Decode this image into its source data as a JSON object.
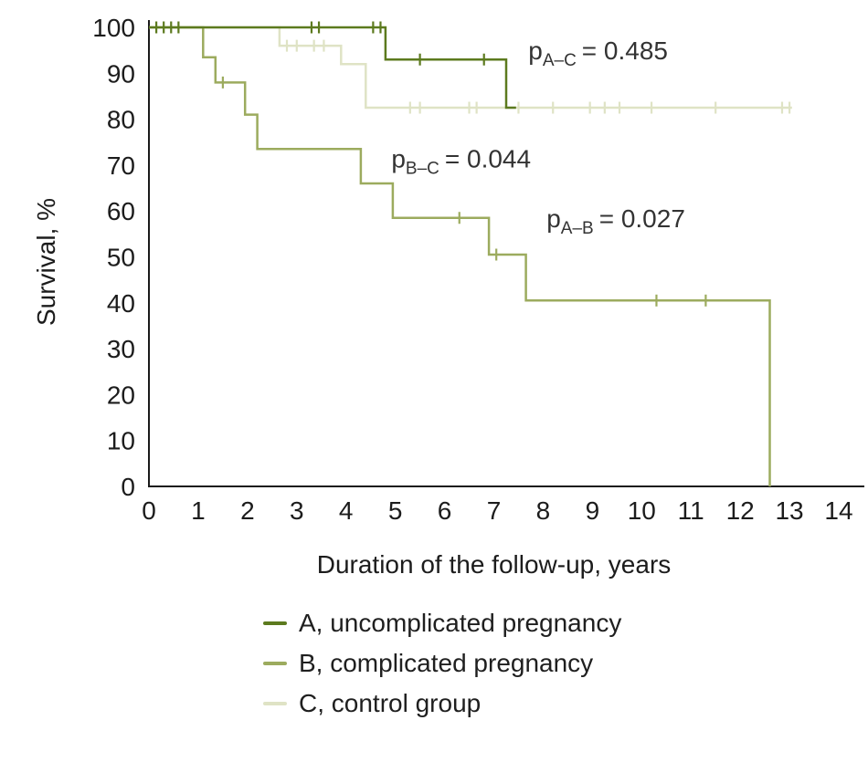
{
  "chart_data": {
    "type": "line",
    "subtype": "kaplan-meier-step",
    "title": "",
    "xlabel": "Duration of the follow-up, years",
    "ylabel": "Survival, %",
    "xlim": [
      0,
      14
    ],
    "ylim": [
      0,
      100
    ],
    "xticks": [
      0,
      1,
      2,
      3,
      4,
      5,
      6,
      7,
      8,
      9,
      10,
      11,
      12,
      13,
      14
    ],
    "yticks": [
      0,
      10,
      20,
      30,
      40,
      50,
      60,
      70,
      80,
      90,
      100
    ],
    "grid": false,
    "legend_position": "bottom",
    "series": [
      {
        "name": "A, uncomplicated pregnancy",
        "color": "#5c7a1e",
        "points": [
          [
            0,
            100
          ],
          [
            4.8,
            100
          ],
          [
            4.8,
            93
          ],
          [
            7.25,
            93
          ],
          [
            7.25,
            82.5
          ],
          [
            7.45,
            82.5
          ]
        ],
        "censors": [
          [
            0.15,
            100
          ],
          [
            0.3,
            100
          ],
          [
            0.45,
            100
          ],
          [
            0.6,
            100
          ],
          [
            3.3,
            100
          ],
          [
            3.45,
            100
          ],
          [
            4.55,
            100
          ],
          [
            4.7,
            100
          ],
          [
            5.5,
            93
          ],
          [
            6.8,
            93
          ]
        ]
      },
      {
        "name": "B, complicated pregnancy",
        "color": "#9cab5e",
        "points": [
          [
            0,
            100
          ],
          [
            1.1,
            100
          ],
          [
            1.1,
            93.5
          ],
          [
            1.35,
            93.5
          ],
          [
            1.35,
            88
          ],
          [
            1.95,
            88
          ],
          [
            1.95,
            81
          ],
          [
            2.2,
            81
          ],
          [
            2.2,
            73.5
          ],
          [
            4.3,
            73.5
          ],
          [
            4.3,
            66
          ],
          [
            4.95,
            66
          ],
          [
            4.95,
            58.5
          ],
          [
            6.9,
            58.5
          ],
          [
            6.9,
            50.5
          ],
          [
            7.65,
            50.5
          ],
          [
            7.65,
            40.5
          ],
          [
            12.6,
            40.5
          ],
          [
            12.6,
            0
          ]
        ],
        "censors": [
          [
            1.5,
            88
          ],
          [
            6.3,
            58.5
          ],
          [
            7.05,
            50.5
          ],
          [
            10.3,
            40.5
          ],
          [
            11.3,
            40.5
          ]
        ]
      },
      {
        "name": "C, control group",
        "color": "#dfe3c5",
        "points": [
          [
            0,
            100
          ],
          [
            2.65,
            100
          ],
          [
            2.65,
            96
          ],
          [
            3.9,
            96
          ],
          [
            3.9,
            92
          ],
          [
            4.4,
            92
          ],
          [
            4.4,
            82.5
          ],
          [
            13.05,
            82.5
          ]
        ],
        "censors": [
          [
            2.8,
            96
          ],
          [
            3.0,
            96
          ],
          [
            3.35,
            96
          ],
          [
            3.55,
            96
          ],
          [
            5.3,
            82.5
          ],
          [
            5.5,
            82.5
          ],
          [
            6.5,
            82.5
          ],
          [
            6.65,
            82.5
          ],
          [
            7.5,
            82.5
          ],
          [
            8.2,
            82.5
          ],
          [
            8.95,
            82.5
          ],
          [
            9.25,
            82.5
          ],
          [
            9.55,
            82.5
          ],
          [
            10.2,
            82.5
          ],
          [
            11.5,
            82.5
          ],
          [
            12.85,
            82.5
          ],
          [
            13.0,
            82.5
          ]
        ]
      }
    ],
    "annotations": [
      {
        "id": "p-ac",
        "main": "p",
        "sub": "A–C",
        "rest": "= 0.485",
        "x": 7.7,
        "y": 93
      },
      {
        "id": "p-bc",
        "main": "p",
        "sub": "B–C",
        "rest": "= 0.044",
        "x": 4.92,
        "y": 69.5
      },
      {
        "id": "p-ab",
        "main": "p",
        "sub": "A–B",
        "rest": "= 0.027",
        "x": 8.07,
        "y": 56.5
      }
    ]
  },
  "legend": {
    "items": [
      {
        "label": "A, uncomplicated pregnancy",
        "color": "#5c7a1e"
      },
      {
        "label": "B, complicated pregnancy",
        "color": "#9cab5e"
      },
      {
        "label": "C, control group",
        "color": "#dfe3c5"
      }
    ]
  }
}
